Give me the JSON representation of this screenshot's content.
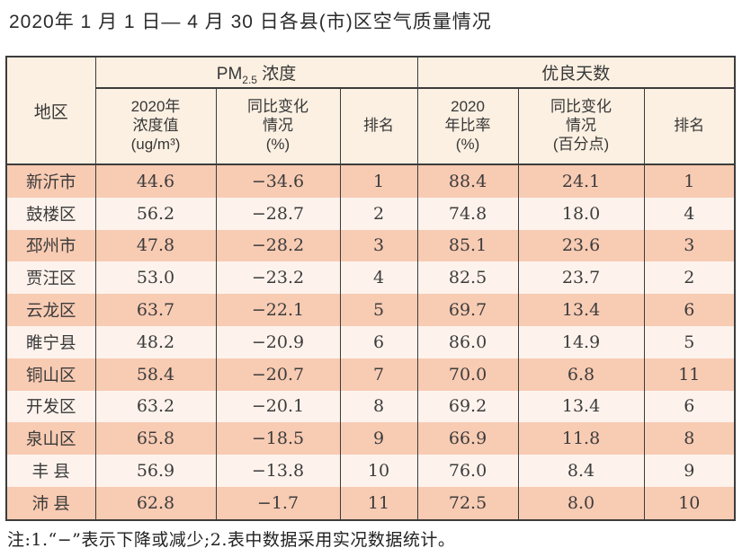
{
  "title": "2020年 1 月 1 日— 4 月 30 日各县(市)区空气质量情况",
  "table": {
    "region_header": "地区",
    "pm25_group": {
      "pre": "PM",
      "sub": "2.5",
      "post": " 浓度"
    },
    "good_days_group": "优良天数",
    "sub_headers": {
      "pm25_value": [
        "2020年",
        "浓度值",
        "(ug/m³)"
      ],
      "pm25_change": [
        "同比变化",
        "情况",
        "(%)"
      ],
      "pm25_rank": "排名",
      "ratio_value": [
        "2020",
        "年比率",
        "(%)"
      ],
      "ratio_change": [
        "同比变化",
        "情况",
        "(百分点)"
      ],
      "ratio_rank": "排名"
    },
    "rows": [
      {
        "region": "新沂市",
        "pm25": "44.6",
        "pm25_change": "−34.6",
        "pm25_rank": "1",
        "ratio": "88.4",
        "ratio_change": "24.1",
        "ratio_rank": "1"
      },
      {
        "region": "鼓楼区",
        "pm25": "56.2",
        "pm25_change": "−28.7",
        "pm25_rank": "2",
        "ratio": "74.8",
        "ratio_change": "18.0",
        "ratio_rank": "4"
      },
      {
        "region": "邳州市",
        "pm25": "47.8",
        "pm25_change": "−28.2",
        "pm25_rank": "3",
        "ratio": "85.1",
        "ratio_change": "23.6",
        "ratio_rank": "3"
      },
      {
        "region": "贾汪区",
        "pm25": "53.0",
        "pm25_change": "−23.2",
        "pm25_rank": "4",
        "ratio": "82.5",
        "ratio_change": "23.7",
        "ratio_rank": "2"
      },
      {
        "region": "云龙区",
        "pm25": "63.7",
        "pm25_change": "−22.1",
        "pm25_rank": "5",
        "ratio": "69.7",
        "ratio_change": "13.4",
        "ratio_rank": "6"
      },
      {
        "region": "睢宁县",
        "pm25": "48.2",
        "pm25_change": "−20.9",
        "pm25_rank": "6",
        "ratio": "86.0",
        "ratio_change": "14.9",
        "ratio_rank": "5"
      },
      {
        "region": "铜山区",
        "pm25": "58.4",
        "pm25_change": "−20.7",
        "pm25_rank": "7",
        "ratio": "70.0",
        "ratio_change": "6.8",
        "ratio_rank": "11"
      },
      {
        "region": "开发区",
        "pm25": "63.2",
        "pm25_change": "−20.1",
        "pm25_rank": "8",
        "ratio": "69.2",
        "ratio_change": "13.4",
        "ratio_rank": "6"
      },
      {
        "region": "泉山区",
        "pm25": "65.8",
        "pm25_change": "−18.5",
        "pm25_rank": "9",
        "ratio": "66.9",
        "ratio_change": "11.8",
        "ratio_rank": "8"
      },
      {
        "region": "丰 县",
        "pm25": "56.9",
        "pm25_change": "−13.8",
        "pm25_rank": "10",
        "ratio": "76.0",
        "ratio_change": "8.4",
        "ratio_rank": "9"
      },
      {
        "region": "沛 县",
        "pm25": "62.8",
        "pm25_change": "−1.7",
        "pm25_rank": "11",
        "ratio": "72.5",
        "ratio_change": "8.0",
        "ratio_rank": "10"
      }
    ]
  },
  "footnote": "注:1.“−”表示下降或减少;2.表中数据采用实况数据统计。",
  "colors": {
    "row_odd_bg": "#f8cbb3",
    "row_even_bg": "#fdf3ec",
    "header_bg": "#fcf0e2",
    "grid_line": "#3c3c3c",
    "text": "#3c3c3c"
  }
}
